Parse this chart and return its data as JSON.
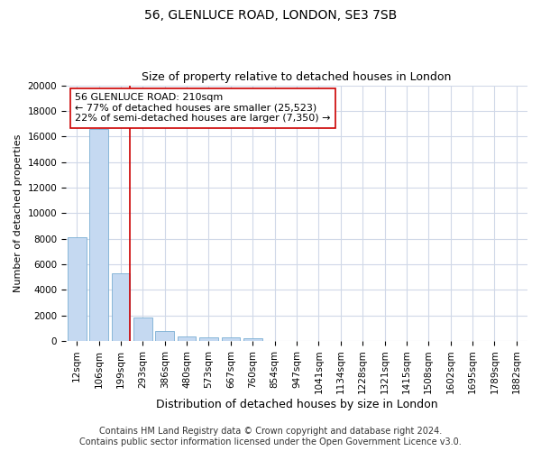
{
  "title1": "56, GLENLUCE ROAD, LONDON, SE3 7SB",
  "title2": "Size of property relative to detached houses in London",
  "xlabel": "Distribution of detached houses by size in London",
  "ylabel": "Number of detached properties",
  "categories": [
    "12sqm",
    "106sqm",
    "199sqm",
    "293sqm",
    "386sqm",
    "480sqm",
    "573sqm",
    "667sqm",
    "760sqm",
    "854sqm",
    "947sqm",
    "1041sqm",
    "1134sqm",
    "1228sqm",
    "1321sqm",
    "1415sqm",
    "1508sqm",
    "1602sqm",
    "1695sqm",
    "1789sqm",
    "1882sqm"
  ],
  "values": [
    8100,
    16600,
    5300,
    1850,
    750,
    350,
    300,
    250,
    200,
    0,
    0,
    0,
    0,
    0,
    0,
    0,
    0,
    0,
    0,
    0,
    0
  ],
  "bar_color": "#c5d9f1",
  "bar_edge_color": "#7bafd4",
  "vline_x_index": 2,
  "vline_color": "#cc0000",
  "annotation_text": "56 GLENLUCE ROAD: 210sqm\n← 77% of detached houses are smaller (25,523)\n22% of semi-detached houses are larger (7,350) →",
  "annotation_box_facecolor": "#ffffff",
  "annotation_box_edgecolor": "#cc0000",
  "ylim_max": 20000,
  "yticks": [
    0,
    2000,
    4000,
    6000,
    8000,
    10000,
    12000,
    14000,
    16000,
    18000,
    20000
  ],
  "footer_line1": "Contains HM Land Registry data © Crown copyright and database right 2024.",
  "footer_line2": "Contains public sector information licensed under the Open Government Licence v3.0.",
  "fig_facecolor": "#ffffff",
  "plot_facecolor": "#ffffff",
  "grid_color": "#d0d8e8",
  "title1_fontsize": 10,
  "title2_fontsize": 9,
  "xlabel_fontsize": 9,
  "ylabel_fontsize": 8,
  "tick_fontsize": 7.5,
  "annotation_fontsize": 8,
  "footer_fontsize": 7
}
